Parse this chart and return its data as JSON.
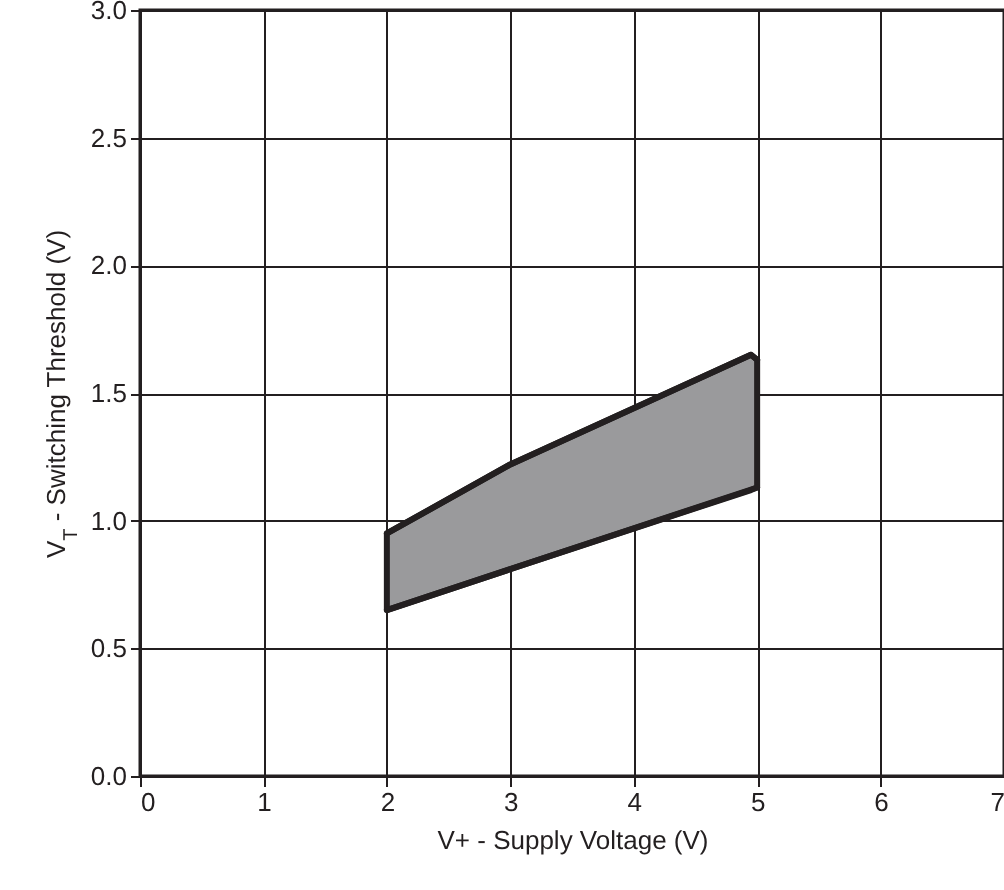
{
  "chart_data": {
    "type": "line",
    "xlabel": "V+ -  Supply Voltage (V)",
    "ylabel": "V$_{T}$  -  Switching Threshold (V)",
    "xlim": [
      0,
      7
    ],
    "xticks": [
      0,
      1,
      2,
      3,
      4,
      5,
      6,
      7
    ],
    "ylim": [
      0,
      3
    ],
    "yticks": [
      {
        "value": 0,
        "label": "0.0"
      },
      {
        "value": 0.5,
        "label": "0.5"
      },
      {
        "value": 1,
        "label": "1.0"
      },
      {
        "value": 1.5,
        "label": "1.5"
      },
      {
        "value": 2,
        "label": "2.0"
      },
      {
        "value": 2.5,
        "label": "2.5"
      },
      {
        "value": 3,
        "label": "3.0"
      }
    ],
    "grid": true,
    "line_style": "solid",
    "marker": "none",
    "series": [
      {
        "color": "#231f20",
        "x": [
          2,
          3,
          4.95,
          5
        ],
        "values": [
          0.95,
          1.22,
          1.65,
          1.63
        ],
        "lower": [
          0.65,
          0.81,
          1.12,
          1.13
        ],
        "upper": [
          0.95,
          1.22,
          1.65,
          1.63
        ]
      },
      {
        "color": "#231f20",
        "x": [
          2,
          5
        ],
        "values": [
          0.65,
          1.13
        ]
      }
    ]
  }
}
